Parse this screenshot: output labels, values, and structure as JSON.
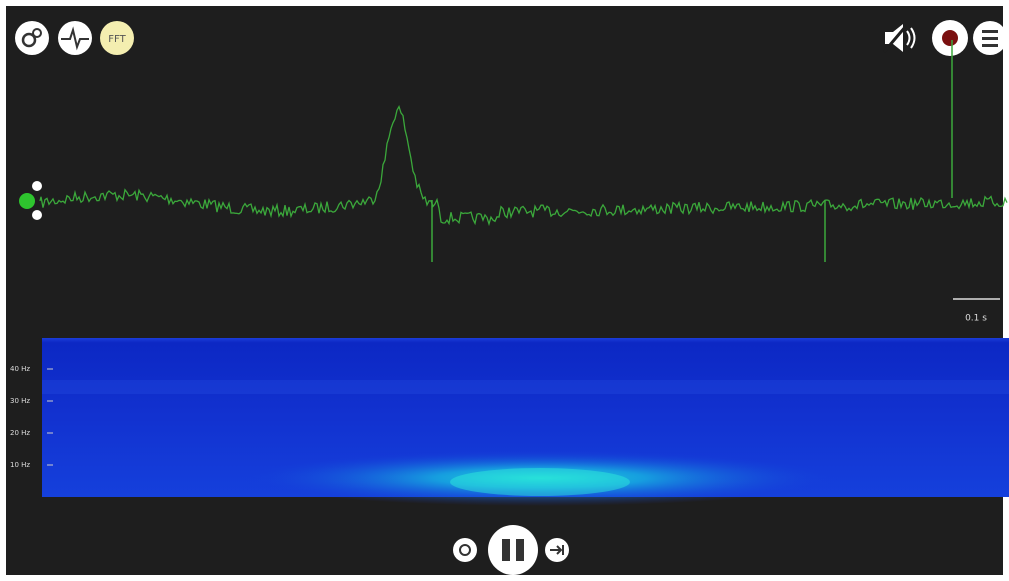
{
  "toolbar": {
    "fft_button": "FFT"
  },
  "spectrogram": {
    "frequency_labels": [
      "40 Hz",
      "30 Hz",
      "20 Hz",
      "10 Hz"
    ]
  },
  "scale_bar": {
    "label": "0.1 s"
  }
}
